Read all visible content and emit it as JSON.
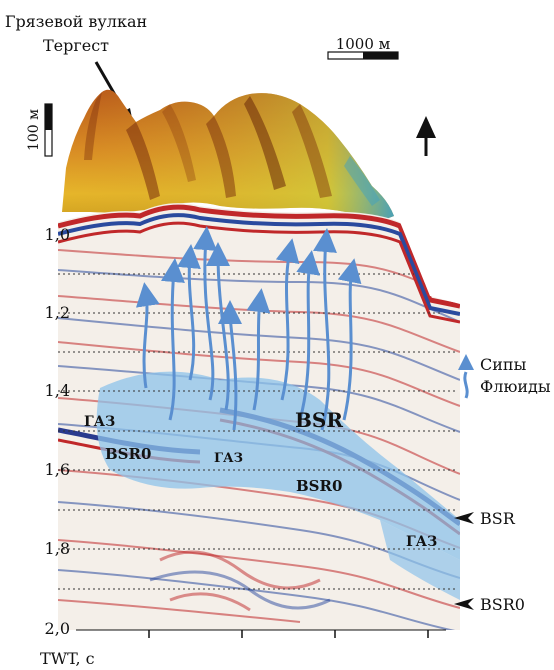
{
  "title_line1": "Грязевой вулкан",
  "title_line2": "Тергест",
  "scale_horizontal": "1000 м",
  "scale_vertical": "100 м",
  "legend": {
    "seeps": "Сипы",
    "fluids": "Флюиды"
  },
  "y_axis": {
    "ticks": [
      "1,0",
      "1,2",
      "1,4",
      "1,6",
      "1,8",
      "2,0"
    ],
    "label": "TWT, с"
  },
  "section_labels": {
    "gas_left": "ГАЗ",
    "bsr0_left": "BSR0",
    "gas_center": "ГАЗ",
    "bsr_center": "BSR",
    "bsr0_center": "BSR0",
    "gas_right": "ГАЗ"
  },
  "markers": {
    "bsr": "BSR",
    "bsr0": "BSR0"
  },
  "colors": {
    "seismic_red": "#c0282a",
    "seismic_blue": "#2a4a9e",
    "fluid_blue": "#5a8fd0",
    "gas_zone": "#8ec3ea",
    "terrain_orange": "#c8621c",
    "terrain_yellow": "#e0b020",
    "terrain_green": "#8fc64a"
  }
}
